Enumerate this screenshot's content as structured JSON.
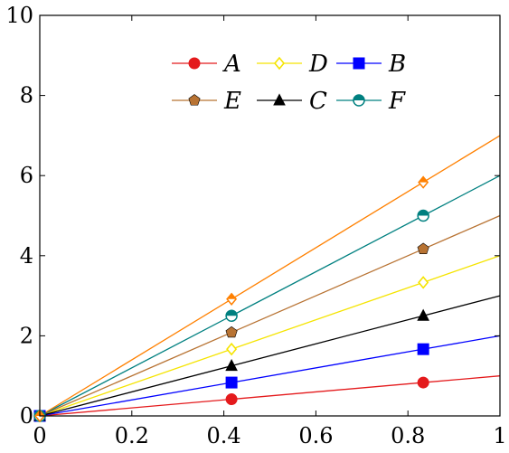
{
  "chart_data": {
    "type": "line",
    "title": "",
    "xlabel": "",
    "ylabel": "",
    "xlim": [
      0,
      1
    ],
    "ylim": [
      0,
      10
    ],
    "x_ticks": [
      "0",
      "0.2",
      "0.4",
      "0.6",
      "0.8",
      "1"
    ],
    "y_ticks": [
      "0",
      "2",
      "4",
      "6",
      "8",
      "10"
    ],
    "grid": false,
    "legend_position": "top",
    "series": [
      {
        "name": "A",
        "color": "#e41a1c",
        "marker": "circle",
        "x": [
          0,
          0.4167,
          0.8333,
          1
        ],
        "y": [
          0,
          0.4167,
          0.8333,
          1
        ]
      },
      {
        "name": "D",
        "color": "#f5e400",
        "marker": "diamond-open",
        "x": [
          0,
          0.4167,
          0.8333,
          1
        ],
        "y": [
          0,
          1.6667,
          3.3333,
          4
        ]
      },
      {
        "name": "B",
        "color": "#0000ff",
        "marker": "square",
        "x": [
          0,
          0.4167,
          0.8333,
          1
        ],
        "y": [
          0,
          0.8333,
          1.6667,
          2
        ]
      },
      {
        "name": "E",
        "color": "#b87333",
        "marker": "pentagon",
        "x": [
          0,
          0.4167,
          0.8333,
          1
        ],
        "y": [
          0,
          2.0833,
          4.1667,
          5
        ]
      },
      {
        "name": "C",
        "color": "#000000",
        "marker": "triangle",
        "x": [
          0,
          0.4167,
          0.8333,
          1
        ],
        "y": [
          0,
          1.25,
          2.5,
          3
        ]
      },
      {
        "name": "F",
        "color": "#008080",
        "marker": "circle-half",
        "x": [
          0,
          0.4167,
          0.8333,
          1
        ],
        "y": [
          0,
          2.5,
          5,
          6
        ]
      },
      {
        "name": "",
        "color": "#ff8000",
        "marker": "diamond-half",
        "x": [
          0,
          0.4167,
          0.8333,
          1
        ],
        "y": [
          0,
          2.9167,
          5.8333,
          7
        ]
      }
    ]
  }
}
